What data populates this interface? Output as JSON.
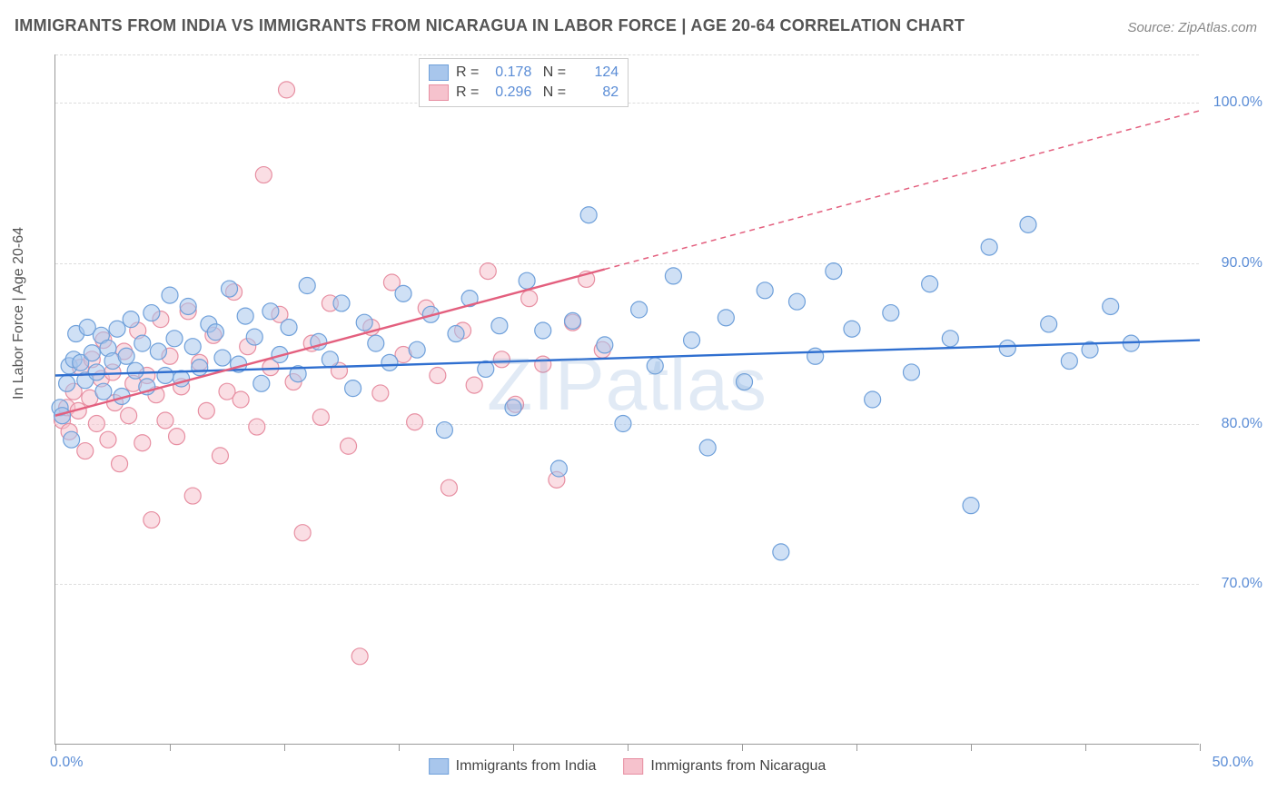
{
  "title": "IMMIGRANTS FROM INDIA VS IMMIGRANTS FROM NICARAGUA IN LABOR FORCE | AGE 20-64 CORRELATION CHART",
  "source": "Source: ZipAtlas.com",
  "watermark": "ZIPatlas",
  "ylabel": "In Labor Force | Age 20-64",
  "chart": {
    "type": "scatter",
    "xlim": [
      0,
      50
    ],
    "ylim": [
      60,
      103
    ],
    "xtick_min_label": "0.0%",
    "xtick_max_label": "50.0%",
    "xtick_positions": [
      0,
      5,
      10,
      15,
      20,
      25,
      30,
      35,
      40,
      45,
      50
    ],
    "ytick_positions": [
      70,
      80,
      90,
      100
    ],
    "ytick_labels": [
      "70.0%",
      "80.0%",
      "90.0%",
      "100.0%"
    ],
    "background_color": "#ffffff",
    "grid_color": "#dddddd",
    "marker_radius": 9,
    "marker_opacity": 0.55,
    "trend_line_width": 2.4
  },
  "series": [
    {
      "name": "Immigrants from India",
      "fill_color": "#a8c6ec",
      "stroke_color": "#6fa0da",
      "trend_color": "#2f6fd0",
      "trend_solid_to_x": 50,
      "R": "0.178",
      "N": "124",
      "trend": {
        "x0": 0,
        "y0": 83.0,
        "x1": 50,
        "y1": 85.2
      },
      "points": [
        [
          0.2,
          81
        ],
        [
          0.3,
          80.5
        ],
        [
          0.5,
          82.5
        ],
        [
          0.6,
          83.6
        ],
        [
          0.7,
          79.0
        ],
        [
          0.8,
          84.0
        ],
        [
          0.9,
          85.6
        ],
        [
          1.1,
          83.8
        ],
        [
          1.3,
          82.7
        ],
        [
          1.4,
          86.0
        ],
        [
          1.6,
          84.4
        ],
        [
          1.8,
          83.2
        ],
        [
          2.0,
          85.5
        ],
        [
          2.1,
          82.0
        ],
        [
          2.3,
          84.7
        ],
        [
          2.5,
          83.9
        ],
        [
          2.7,
          85.9
        ],
        [
          2.9,
          81.7
        ],
        [
          3.1,
          84.2
        ],
        [
          3.3,
          86.5
        ],
        [
          3.5,
          83.3
        ],
        [
          3.8,
          85.0
        ],
        [
          4.0,
          82.3
        ],
        [
          4.2,
          86.9
        ],
        [
          4.5,
          84.5
        ],
        [
          4.8,
          83.0
        ],
        [
          5.0,
          88.0
        ],
        [
          5.2,
          85.3
        ],
        [
          5.5,
          82.8
        ],
        [
          5.8,
          87.3
        ],
        [
          6.0,
          84.8
        ],
        [
          6.3,
          83.5
        ],
        [
          6.7,
          86.2
        ],
        [
          7.0,
          85.7
        ],
        [
          7.3,
          84.1
        ],
        [
          7.6,
          88.4
        ],
        [
          8.0,
          83.7
        ],
        [
          8.3,
          86.7
        ],
        [
          8.7,
          85.4
        ],
        [
          9.0,
          82.5
        ],
        [
          9.4,
          87.0
        ],
        [
          9.8,
          84.3
        ],
        [
          10.2,
          86.0
        ],
        [
          10.6,
          83.1
        ],
        [
          11.0,
          88.6
        ],
        [
          11.5,
          85.1
        ],
        [
          12.0,
          84.0
        ],
        [
          12.5,
          87.5
        ],
        [
          13.0,
          82.2
        ],
        [
          13.5,
          86.3
        ],
        [
          14.0,
          85.0
        ],
        [
          14.6,
          83.8
        ],
        [
          15.2,
          88.1
        ],
        [
          15.8,
          84.6
        ],
        [
          16.4,
          86.8
        ],
        [
          17.0,
          79.6
        ],
        [
          17.5,
          85.6
        ],
        [
          18.1,
          87.8
        ],
        [
          18.8,
          83.4
        ],
        [
          19.4,
          86.1
        ],
        [
          20.0,
          81.0
        ],
        [
          20.6,
          88.9
        ],
        [
          21.3,
          85.8
        ],
        [
          22.0,
          77.2
        ],
        [
          22.6,
          86.4
        ],
        [
          23.3,
          93.0
        ],
        [
          24.0,
          84.9
        ],
        [
          24.8,
          80.0
        ],
        [
          25.5,
          87.1
        ],
        [
          26.2,
          83.6
        ],
        [
          27.0,
          89.2
        ],
        [
          27.8,
          85.2
        ],
        [
          28.5,
          78.5
        ],
        [
          29.3,
          86.6
        ],
        [
          30.1,
          82.6
        ],
        [
          31.0,
          88.3
        ],
        [
          31.7,
          72.0
        ],
        [
          32.4,
          87.6
        ],
        [
          33.2,
          84.2
        ],
        [
          34.0,
          89.5
        ],
        [
          34.8,
          85.9
        ],
        [
          35.7,
          81.5
        ],
        [
          36.5,
          86.9
        ],
        [
          37.4,
          83.2
        ],
        [
          38.2,
          88.7
        ],
        [
          39.1,
          85.3
        ],
        [
          40.0,
          74.9
        ],
        [
          40.8,
          91.0
        ],
        [
          41.6,
          84.7
        ],
        [
          42.5,
          92.4
        ],
        [
          43.4,
          86.2
        ],
        [
          44.3,
          83.9
        ],
        [
          45.2,
          84.6
        ],
        [
          46.1,
          87.3
        ],
        [
          47.0,
          85.0
        ]
      ]
    },
    {
      "name": "Immigrants from Nicaragua",
      "fill_color": "#f6c2cd",
      "stroke_color": "#e78fa2",
      "trend_color": "#e35f7e",
      "trend_solid_to_x": 24,
      "R": "0.296",
      "N": "82",
      "trend": {
        "x0": 0,
        "y0": 80.5,
        "x1": 50,
        "y1": 99.5
      },
      "points": [
        [
          0.3,
          80.2
        ],
        [
          0.5,
          81.0
        ],
        [
          0.6,
          79.5
        ],
        [
          0.8,
          82.0
        ],
        [
          1.0,
          80.8
        ],
        [
          1.1,
          83.5
        ],
        [
          1.3,
          78.3
        ],
        [
          1.5,
          81.6
        ],
        [
          1.6,
          84.0
        ],
        [
          1.8,
          80.0
        ],
        [
          2.0,
          82.8
        ],
        [
          2.1,
          85.2
        ],
        [
          2.3,
          79.0
        ],
        [
          2.5,
          83.2
        ],
        [
          2.6,
          81.3
        ],
        [
          2.8,
          77.5
        ],
        [
          3.0,
          84.5
        ],
        [
          3.2,
          80.5
        ],
        [
          3.4,
          82.5
        ],
        [
          3.6,
          85.8
        ],
        [
          3.8,
          78.8
        ],
        [
          4.0,
          83.0
        ],
        [
          4.2,
          74.0
        ],
        [
          4.4,
          81.8
        ],
        [
          4.6,
          86.5
        ],
        [
          4.8,
          80.2
        ],
        [
          5.0,
          84.2
        ],
        [
          5.3,
          79.2
        ],
        [
          5.5,
          82.3
        ],
        [
          5.8,
          87.0
        ],
        [
          6.0,
          75.5
        ],
        [
          6.3,
          83.8
        ],
        [
          6.6,
          80.8
        ],
        [
          6.9,
          85.5
        ],
        [
          7.2,
          78.0
        ],
        [
          7.5,
          82.0
        ],
        [
          7.8,
          88.2
        ],
        [
          8.1,
          81.5
        ],
        [
          8.4,
          84.8
        ],
        [
          8.8,
          79.8
        ],
        [
          9.1,
          95.5
        ],
        [
          9.4,
          83.5
        ],
        [
          9.8,
          86.8
        ],
        [
          10.1,
          100.8
        ],
        [
          10.4,
          82.6
        ],
        [
          10.8,
          73.2
        ],
        [
          11.2,
          85.0
        ],
        [
          11.6,
          80.4
        ],
        [
          12.0,
          87.5
        ],
        [
          12.4,
          83.3
        ],
        [
          12.8,
          78.6
        ],
        [
          13.3,
          65.5
        ],
        [
          13.8,
          86.0
        ],
        [
          14.2,
          81.9
        ],
        [
          14.7,
          88.8
        ],
        [
          15.2,
          84.3
        ],
        [
          15.7,
          80.1
        ],
        [
          16.2,
          87.2
        ],
        [
          16.7,
          83.0
        ],
        [
          17.2,
          76.0
        ],
        [
          17.8,
          85.8
        ],
        [
          18.3,
          82.4
        ],
        [
          18.9,
          89.5
        ],
        [
          19.5,
          84.0
        ],
        [
          20.1,
          81.2
        ],
        [
          20.7,
          87.8
        ],
        [
          21.3,
          83.7
        ],
        [
          21.9,
          76.5
        ],
        [
          22.6,
          86.3
        ],
        [
          23.2,
          89.0
        ],
        [
          23.9,
          84.6
        ]
      ]
    }
  ],
  "legend_bottom": [
    {
      "label": "Immigrants from India",
      "fill": "#a8c6ec",
      "stroke": "#6fa0da"
    },
    {
      "label": "Immigrants from Nicaragua",
      "fill": "#f6c2cd",
      "stroke": "#e78fa2"
    }
  ]
}
